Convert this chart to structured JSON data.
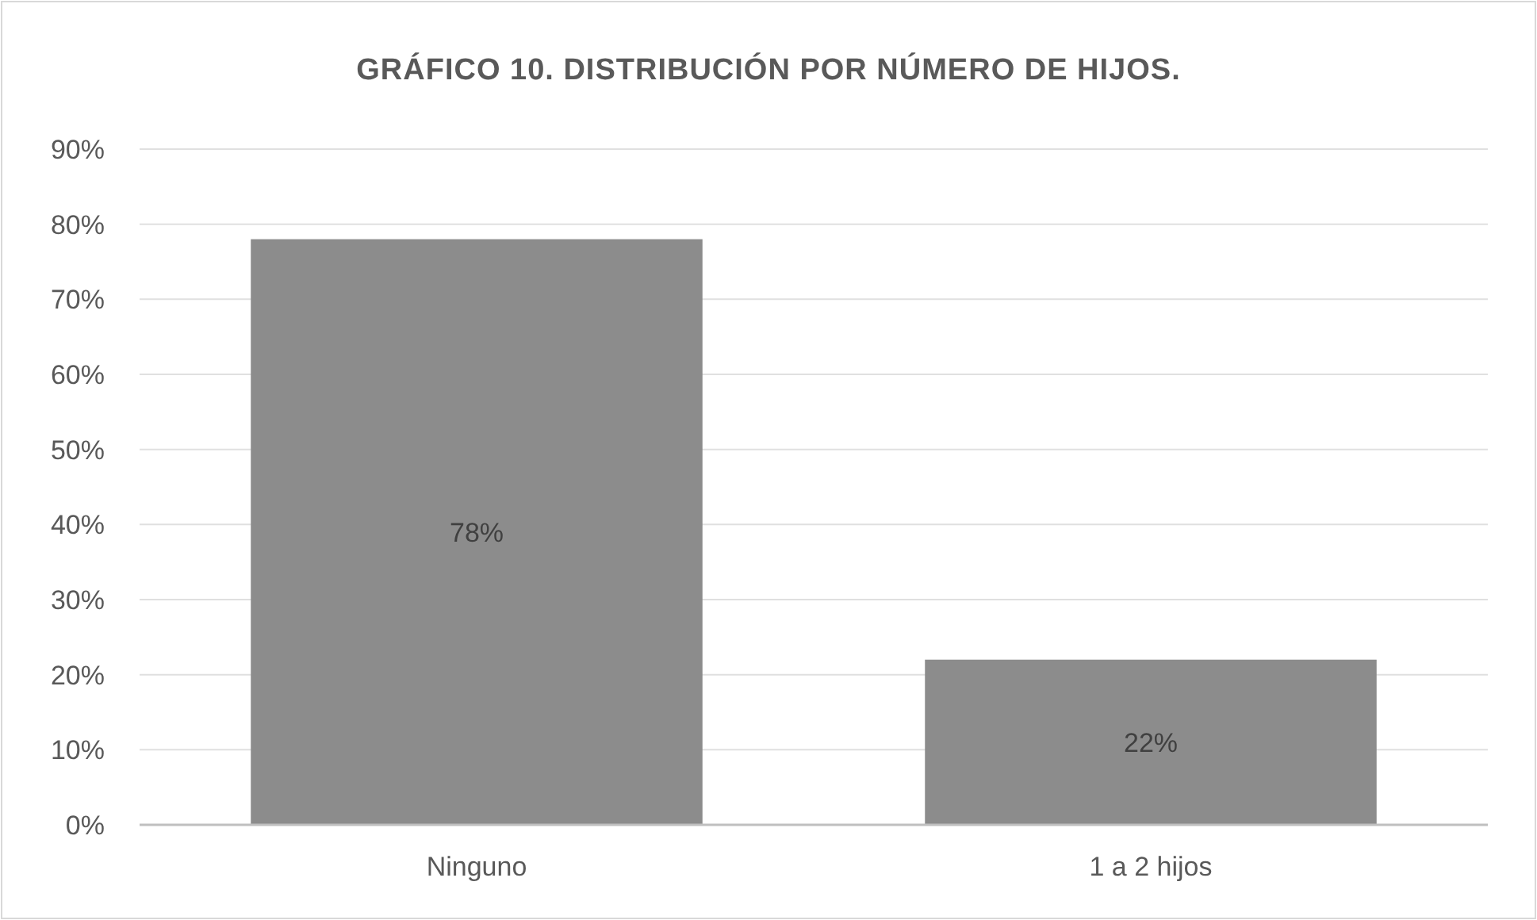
{
  "chart_data": {
    "type": "bar",
    "title": "GRÁFICO 10. DISTRIBUCIÓN POR NÚMERO DE HIJOS.",
    "categories": [
      "Ninguno",
      "1 a 2 hijos"
    ],
    "values": [
      78,
      22
    ],
    "color": "#8c8c8c",
    "ylim": [
      0,
      90
    ],
    "yticks": [
      {
        "value": 0,
        "label": "0%"
      },
      {
        "value": 10,
        "label": "10%"
      },
      {
        "value": 20,
        "label": "20%"
      },
      {
        "value": 30,
        "label": "30%"
      },
      {
        "value": 40,
        "label": "40%"
      },
      {
        "value": 50,
        "label": "50%"
      },
      {
        "value": 60,
        "label": "60%"
      },
      {
        "value": 70,
        "label": "70%"
      },
      {
        "value": 80,
        "label": "80%"
      },
      {
        "value": 90,
        "label": "90%"
      }
    ],
    "value_labels": [
      "78%",
      "22%"
    ],
    "grid": "y"
  }
}
